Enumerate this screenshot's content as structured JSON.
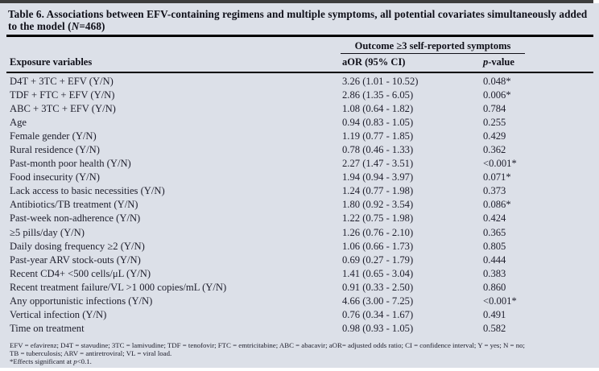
{
  "title": {
    "prefix": "Table 6. Associations between EFV-containing regimens and multiple symptoms, all potential covariates simultaneously added to the model (",
    "n_italic": "N",
    "suffix": "=468)"
  },
  "header": {
    "outcome_group": "Outcome ≥3 self-reported symptoms",
    "col_exposure": "Exposure variables",
    "col_aor": "aOR (95% CI)",
    "col_p_italic": "p",
    "col_p_rest": "-value"
  },
  "table": {
    "rows": [
      {
        "label": "D4T + 3TC + EFV (Y/N)",
        "aor": "3.26 (1.01 - 10.52)",
        "p": "0.048*"
      },
      {
        "label": "TDF + FTC + EFV (Y/N)",
        "aor": "2.86 (1.35 - 6.05)",
        "p": "0.006*"
      },
      {
        "label": "ABC + 3TC + EFV (Y/N)",
        "aor": "1.08 (0.64 - 1.82)",
        "p": "0.784"
      },
      {
        "label": "Age",
        "aor": "0.94 (0.83 - 1.05)",
        "p": "0.255"
      },
      {
        "label": "Female gender (Y/N)",
        "aor": "1.19 (0.77 - 1.85)",
        "p": "0.429"
      },
      {
        "label": "Rural residence (Y/N)",
        "aor": "0.78 (0.46 - 1.33)",
        "p": "0.362"
      },
      {
        "label": "Past-month poor health (Y/N)",
        "aor": "2.27 (1.47 - 3.51)",
        "p": "<0.001*"
      },
      {
        "label": "Food insecurity (Y/N)",
        "aor": "1.94 (0.94 - 3.97)",
        "p": "0.071*"
      },
      {
        "label": "Lack access to basic necessities (Y/N)",
        "aor": "1.24 (0.77 - 1.98)",
        "p": "0.373"
      },
      {
        "label": "Antibiotics/TB treatment (Y/N)",
        "aor": "1.80 (0.92 - 3.54)",
        "p": "0.086*"
      },
      {
        "label": "Past-week non-adherence (Y/N)",
        "aor": "1.22 (0.75 - 1.98)",
        "p": "0.424"
      },
      {
        "label": "≥5 pills/day (Y/N)",
        "aor": "1.26 (0.76 - 2.10)",
        "p": "0.365"
      },
      {
        "label": "Daily dosing frequency ≥2 (Y/N)",
        "aor": "1.06 (0.66 - 1.73)",
        "p": "0.805"
      },
      {
        "label": "Past-year ARV stock-outs (Y/N)",
        "aor": "0.69 (0.27 - 1.79)",
        "p": "0.444"
      },
      {
        "label": "Recent CD4+ <500 cells/μL (Y/N)",
        "aor": "1.41 (0.65 - 3.04)",
        "p": "0.383"
      },
      {
        "label": "Recent treatment failure/VL >1 000 copies/mL (Y/N)",
        "aor": "0.91 (0.33 - 2.50)",
        "p": "0.860"
      },
      {
        "label": "Any opportunistic infections (Y/N)",
        "aor": "4.66 (3.00 - 7.25)",
        "p": "<0.001*"
      },
      {
        "label": "Vertical infection (Y/N)",
        "aor": "0.76 (0.34 - 1.67)",
        "p": "0.491"
      },
      {
        "label": "Time on treatment",
        "aor": "0.98 (0.93 - 1.05)",
        "p": "0.582"
      }
    ]
  },
  "footnotes": {
    "line1": "EFV = efavirenz; D4T = stavudine; 3TC = lamivudine; TDF = tenofovir; FTC = emtricitabine; ABC = abacavir; aOR= adjusted odds ratio; CI = confidence interval; Y = yes; N = no;",
    "line2": "TB = tuberculosis; ARV = antiretroviral; VL = viral load.",
    "line3_prefix": "*Effects significant at ",
    "line3_p": "p",
    "line3_suffix": "<0.1."
  },
  "colors": {
    "panel_background": "#dce0e8",
    "text": "#20202e",
    "rule": "#000000",
    "top_strip": "#3d3d3d"
  }
}
